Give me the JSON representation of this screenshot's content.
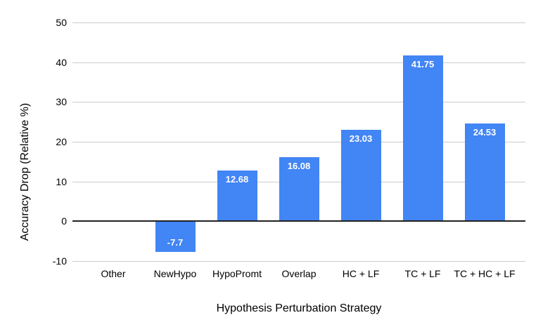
{
  "chart_data": {
    "type": "bar",
    "categories": [
      "Other",
      "NewHypo",
      "HypoPromt",
      "Overlap",
      "HC + LF",
      "TC + LF",
      "TC + HC + LF"
    ],
    "values": [
      0,
      -7.7,
      12.68,
      16.08,
      23.03,
      41.75,
      24.53
    ],
    "value_labels": [
      "",
      "-7.7",
      "12.68",
      "16.08",
      "23.03",
      "41.75",
      "24.53"
    ],
    "title": "",
    "xlabel": "Hypothesis Perturbation Strategy",
    "ylabel": "Accuracy Drop (Relative %)",
    "ylim": [
      -10,
      50
    ],
    "yticks": [
      50,
      40,
      30,
      20,
      10,
      0,
      -10
    ],
    "grid": true,
    "legend": "none",
    "bar_color": "#4285f4",
    "value_label_color": "#ffffff",
    "gridline_color": "#cccccc",
    "baseline_color": "#212121",
    "text_color": "#000000",
    "background_color": "#ffffff"
  }
}
